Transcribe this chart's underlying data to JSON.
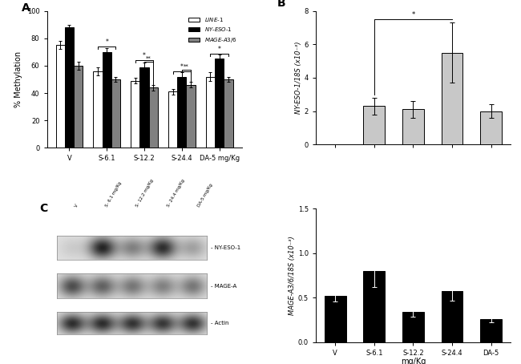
{
  "panel_A": {
    "categories": [
      "V",
      "S-6.1",
      "S-12.2",
      "S-24.4",
      "DA-5 mg/Kg"
    ],
    "line1_values": [
      75,
      56,
      49,
      41,
      52
    ],
    "line1_errors": [
      3,
      3,
      2,
      2,
      3
    ],
    "line2_values": [
      88,
      70,
      59,
      52,
      65
    ],
    "line2_errors": [
      2,
      3,
      3,
      3,
      3
    ],
    "line3_values": [
      60,
      50,
      44,
      46,
      50
    ],
    "line3_errors": [
      3,
      2,
      2,
      2,
      2
    ],
    "ylabel": "% Methylation",
    "ylim": [
      0,
      100
    ],
    "yticks": [
      0,
      20,
      40,
      60,
      80,
      100
    ],
    "legend_labels": [
      "LINE-1",
      "NY-ESO-1",
      "MAGE-A3/6"
    ],
    "colors": [
      "white",
      "black",
      "#808080"
    ],
    "panel_label": "A"
  },
  "panel_B_top": {
    "categories": [
      "V",
      "S-6.1",
      "S-12.2",
      "S-24.4",
      "DA-5"
    ],
    "values": [
      0,
      2.3,
      2.1,
      5.5,
      2.0
    ],
    "errors": [
      0,
      0.5,
      0.5,
      1.8,
      0.4
    ],
    "ylabel": "NY-ESO-1/18S (x10⁻³)",
    "ylim": [
      0,
      8.0
    ],
    "yticks": [
      0.0,
      2.0,
      4.0,
      6.0,
      8.0
    ],
    "color": "#c8c8c8",
    "panel_label": "B"
  },
  "panel_B_bottom": {
    "categories": [
      "V",
      "S-6.1",
      "S-12.2",
      "S-24.4",
      "DA-5"
    ],
    "values": [
      0.52,
      0.8,
      0.34,
      0.57,
      0.26
    ],
    "errors": [
      0.06,
      0.18,
      0.05,
      0.1,
      0.04
    ],
    "ylabel": "MAGE-A3/6/18S (x10⁻³)",
    "ylim": [
      0,
      1.5
    ],
    "yticks": [
      0.0,
      0.5,
      1.0,
      1.5
    ],
    "color": "black",
    "xlabel": "mg/Kg"
  },
  "panel_C": {
    "label": "C",
    "col_labels": [
      "V",
      "S- 6.1\nmg/Kg",
      "S- 12.2\nmg/Kg",
      "S- 24.4\nmg/Kg",
      "DA-5\nmg/Kg"
    ],
    "row_labels": [
      "- NY-ESO-1",
      "- MAGE-A",
      "- Actin"
    ],
    "band_intensities": [
      [
        0.1,
        0.9,
        0.45,
        0.85,
        0.3
      ],
      [
        0.7,
        0.6,
        0.5,
        0.45,
        0.5
      ],
      [
        0.85,
        0.85,
        0.82,
        0.8,
        0.82
      ]
    ]
  }
}
